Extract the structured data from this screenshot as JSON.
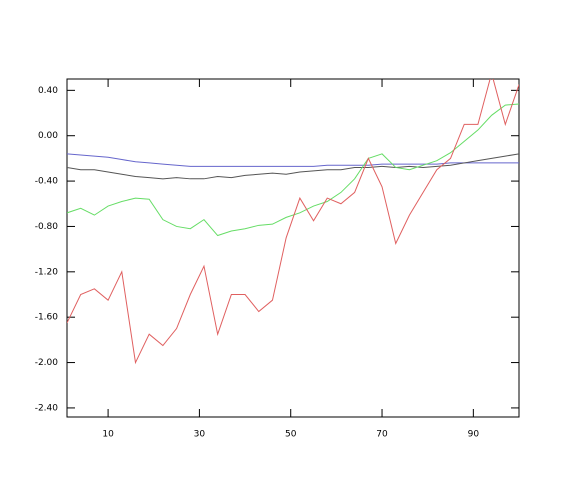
{
  "chart_data": {
    "type": "line",
    "x": [
      1,
      4,
      7,
      10,
      13,
      16,
      19,
      22,
      25,
      28,
      31,
      34,
      37,
      40,
      43,
      46,
      49,
      52,
      55,
      58,
      61,
      64,
      67,
      70,
      73,
      76,
      79,
      82,
      85,
      88,
      91,
      94,
      97,
      100
    ],
    "series": [
      {
        "color": "#6666cc",
        "values": [
          -0.16,
          -0.17,
          -0.18,
          -0.19,
          -0.21,
          -0.23,
          -0.24,
          -0.25,
          -0.26,
          -0.27,
          -0.27,
          -0.27,
          -0.27,
          -0.27,
          -0.27,
          -0.27,
          -0.27,
          -0.27,
          -0.27,
          -0.26,
          -0.26,
          -0.26,
          -0.26,
          -0.25,
          -0.25,
          -0.25,
          -0.25,
          -0.25,
          -0.24,
          -0.24,
          -0.24,
          -0.24,
          -0.24,
          -0.24
        ]
      },
      {
        "color": "#555555",
        "values": [
          -0.28,
          -0.3,
          -0.3,
          -0.32,
          -0.34,
          -0.36,
          -0.37,
          -0.38,
          -0.37,
          -0.38,
          -0.38,
          -0.36,
          -0.37,
          -0.35,
          -0.34,
          -0.33,
          -0.34,
          -0.32,
          -0.31,
          -0.3,
          -0.3,
          -0.28,
          -0.28,
          -0.27,
          -0.28,
          -0.27,
          -0.28,
          -0.27,
          -0.26,
          -0.24,
          -0.22,
          -0.2,
          -0.18,
          -0.16
        ]
      },
      {
        "color": "#66dd66",
        "values": [
          -0.68,
          -0.64,
          -0.7,
          -0.62,
          -0.58,
          -0.55,
          -0.56,
          -0.74,
          -0.8,
          -0.82,
          -0.74,
          -0.88,
          -0.84,
          -0.82,
          -0.79,
          -0.78,
          -0.72,
          -0.68,
          -0.62,
          -0.58,
          -0.5,
          -0.38,
          -0.2,
          -0.16,
          -0.28,
          -0.3,
          -0.26,
          -0.22,
          -0.15,
          -0.05,
          0.05,
          0.18,
          0.27,
          0.28
        ]
      },
      {
        "color": "#e06060",
        "values": [
          -1.65,
          -1.4,
          -1.35,
          -1.45,
          -1.2,
          -2.0,
          -1.75,
          -1.85,
          -1.7,
          -1.4,
          -1.15,
          -1.75,
          -1.4,
          -1.4,
          -1.55,
          -1.45,
          -0.9,
          -0.55,
          -0.75,
          -0.55,
          -0.6,
          -0.5,
          -0.2,
          -0.45,
          -0.95,
          -0.7,
          -0.5,
          -0.3,
          -0.2,
          0.1,
          0.1,
          0.55,
          0.1,
          0.45
        ]
      }
    ],
    "xlim": [
      1,
      100
    ],
    "xticks": [
      10,
      30,
      50,
      70,
      90
    ],
    "ylim": [
      -2.48,
      0.5
    ],
    "yticks": [
      {
        "value": 0.4,
        "label": "0.40"
      },
      {
        "value": 0.0,
        "label": "0.00"
      },
      {
        "value": -0.4,
        "label": "-0.40"
      },
      {
        "value": -0.8,
        "label": "-0.80"
      },
      {
        "value": -1.2,
        "label": "-1.20"
      },
      {
        "value": -1.6,
        "label": "-1.60"
      },
      {
        "value": -2.0,
        "label": "-2.00"
      },
      {
        "value": -2.4,
        "label": "-2.40"
      }
    ]
  }
}
